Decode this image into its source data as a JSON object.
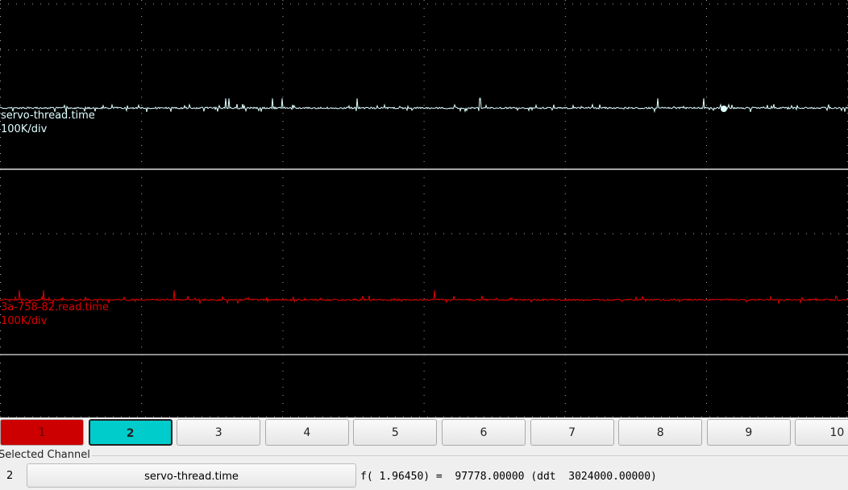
{
  "traces": [
    {
      "label": "servo-thread.time",
      "scale": "100K/div",
      "color": "#e0ffff"
    },
    {
      "label": "3a-758-82.read.time",
      "scale": "100K/div",
      "color": "#dd0000"
    }
  ],
  "buttons": [
    "1",
    "2",
    "3",
    "4",
    "5",
    "6",
    "7",
    "8",
    "9",
    "10"
  ],
  "selected_channel": {
    "title": "Selected Channel",
    "number": "2",
    "name": "servo-thread.time",
    "readout": "f( 1.96450) =  97778.00000 (ddt  3024000.00000)"
  }
}
